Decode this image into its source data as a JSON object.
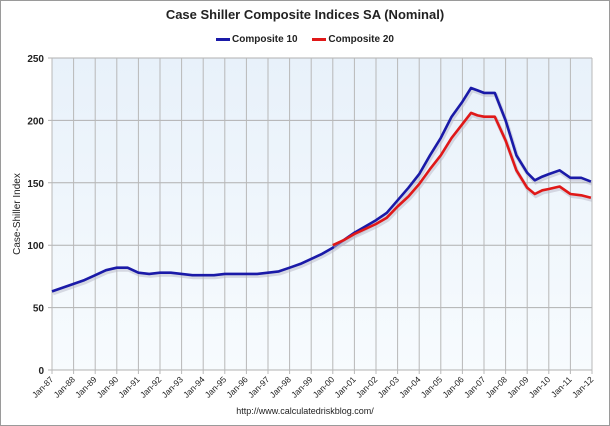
{
  "chart_data": {
    "type": "line",
    "title": "Case Shiller Composite Indices SA (Nominal)",
    "xlabel": "",
    "ylabel": "Case-Shiller Index",
    "ylim": [
      0,
      250
    ],
    "yticks": [
      0,
      50,
      100,
      150,
      200,
      250
    ],
    "xlim": [
      1987,
      2012
    ],
    "xtick_labels": [
      "Jan-87",
      "Jan-88",
      "Jan-89",
      "Jan-90",
      "Jan-91",
      "Jan-92",
      "Jan-93",
      "Jan-94",
      "Jan-95",
      "Jan-96",
      "Jan-97",
      "Jan-98",
      "Jan-99",
      "Jan-00",
      "Jan-01",
      "Jan-02",
      "Jan-03",
      "Jan-04",
      "Jan-05",
      "Jan-06",
      "Jan-07",
      "Jan-08",
      "Jan-09",
      "Jan-10",
      "Jan-11",
      "Jan-12"
    ],
    "grid": true,
    "legend_position": "top",
    "source": "http://www.calculatedriskblog.com/",
    "series": [
      {
        "name": "Composite 10",
        "color": "#1a1aa8",
        "x": [
          1987,
          1987.5,
          1988,
          1988.5,
          1989,
          1989.5,
          1990,
          1990.5,
          1991,
          1991.5,
          1992,
          1992.5,
          1993,
          1993.5,
          1994,
          1994.5,
          1995,
          1995.5,
          1996,
          1996.5,
          1997,
          1997.5,
          1998,
          1998.5,
          1999,
          1999.5,
          2000,
          2000.5,
          2001,
          2001.5,
          2002,
          2002.5,
          2003,
          2003.5,
          2004,
          2004.5,
          2005,
          2005.5,
          2006,
          2006.4,
          2006.7,
          2007,
          2007.5,
          2008,
          2008.5,
          2009,
          2009.35,
          2009.7,
          2010,
          2010.5,
          2011,
          2011.5,
          2011.95
        ],
        "y": [
          63,
          66,
          69,
          72,
          76,
          80,
          82,
          82,
          78,
          77,
          78,
          78,
          77,
          76,
          76,
          76,
          77,
          77,
          77,
          77,
          78,
          79,
          82,
          85,
          89,
          93,
          98,
          104,
          110,
          115,
          120,
          126,
          136,
          146,
          157,
          172,
          186,
          203,
          215,
          226,
          224,
          222,
          222,
          200,
          172,
          158,
          152,
          155,
          157,
          160,
          154,
          154,
          151
        ]
      },
      {
        "name": "Composite 20",
        "color": "#e01818",
        "x": [
          2000,
          2000.5,
          2001,
          2001.5,
          2002,
          2002.5,
          2003,
          2003.5,
          2004,
          2004.5,
          2005,
          2005.5,
          2006,
          2006.4,
          2006.7,
          2007,
          2007.5,
          2008,
          2008.5,
          2009,
          2009.35,
          2009.7,
          2010,
          2010.5,
          2011,
          2011.5,
          2011.95
        ],
        "y": [
          100,
          104,
          109,
          113,
          117,
          122,
          131,
          139,
          149,
          161,
          172,
          186,
          197,
          206,
          204,
          203,
          203,
          184,
          160,
          146,
          141,
          144,
          145,
          147,
          141,
          140,
          138
        ]
      }
    ]
  }
}
